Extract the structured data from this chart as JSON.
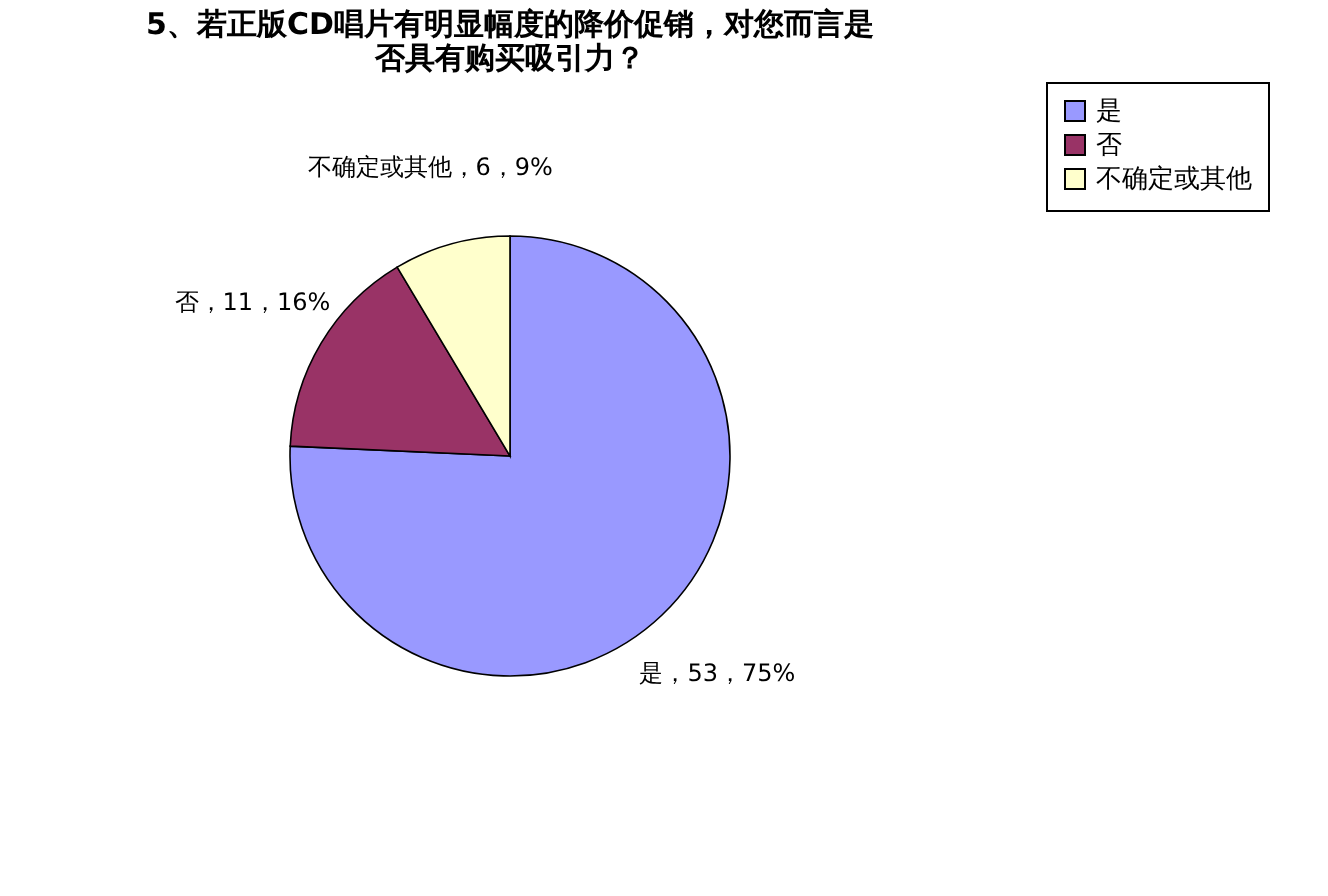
{
  "chart_data": {
    "type": "pie",
    "title": [
      "5、若正版CD唱片有明显幅度的降价促销，对您而言是",
      "否具有购买吸引力？"
    ],
    "categories": [
      "是",
      "否",
      "不确定或其他"
    ],
    "values": [
      53,
      11,
      6
    ],
    "colors": [
      "#9999ff",
      "#993366",
      "#ffffcc"
    ],
    "value_labels": [
      "是，53，75%",
      "否，11，16%",
      "不确定或其他，6，9%"
    ],
    "legend": "right"
  }
}
